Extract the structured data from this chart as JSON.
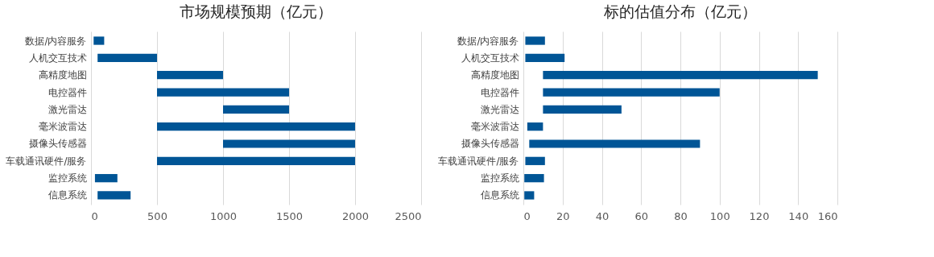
{
  "chart_data": [
    {
      "type": "bar",
      "orientation": "horizontal",
      "title": "市场规模预期（亿元）",
      "categories": [
        "数据/内容服务",
        "人机交互技术",
        "高精度地图",
        "电控器件",
        "激光雷达",
        "毫米波雷达",
        "摄像头传感器",
        "车载通讯硬件/服务",
        "监控系统",
        "信息系统"
      ],
      "base": [
        20,
        50,
        500,
        500,
        1000,
        500,
        1000,
        500,
        30,
        50
      ],
      "values": [
        80,
        450,
        500,
        1000,
        500,
        1500,
        1000,
        1500,
        170,
        250
      ],
      "color": "#005596",
      "xlim": [
        0,
        2500
      ],
      "xticks": [
        0,
        500,
        1000,
        1500,
        2000,
        2500
      ],
      "grid": "x"
    },
    {
      "type": "bar",
      "orientation": "horizontal",
      "title": "标的估值分布（亿元）",
      "categories": [
        "数据/内容服务",
        "人机交互技术",
        "高精度地图",
        "电控器件",
        "激光雷达",
        "毫米波雷达",
        "摄像头传感器",
        "车载通讯硬件/服务",
        "监控系统",
        "信息系统"
      ],
      "base": [
        1,
        1,
        10,
        10,
        10,
        2,
        3,
        1,
        0.5,
        0.5
      ],
      "values": [
        10,
        20,
        140,
        90,
        40,
        8,
        87,
        10,
        10,
        5
      ],
      "color": "#005596",
      "xlim": [
        0,
        160
      ],
      "xticks": [
        0,
        20,
        40,
        60,
        80,
        100,
        120,
        140,
        160
      ],
      "grid": "x"
    }
  ]
}
